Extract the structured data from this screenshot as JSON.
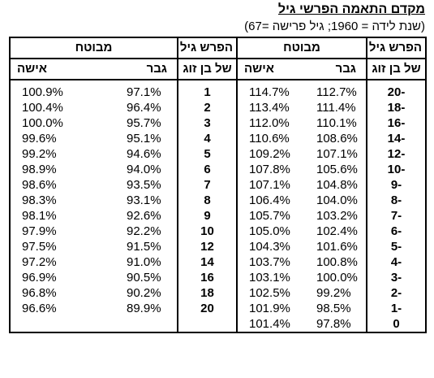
{
  "title": "מקדם התאמה הפרשי גיל",
  "subtitle": "(שנת לידה = 1960; גיל פרישה =67)",
  "headers": {
    "age_diff_line1": "הפרש גיל",
    "age_diff_line2": "של בן זוג",
    "mavutach": "מבוטח",
    "man": "גבר",
    "woman": "אישה"
  },
  "right_block": [
    {
      "age": "-20",
      "man": "112.7%",
      "woman": "114.7%"
    },
    {
      "age": "-18",
      "man": "111.4%",
      "woman": "113.4%"
    },
    {
      "age": "-16",
      "man": "110.1%",
      "woman": "112.0%"
    },
    {
      "age": "-14",
      "man": "108.6%",
      "woman": "110.6%"
    },
    {
      "age": "-12",
      "man": "107.1%",
      "woman": "109.2%"
    },
    {
      "age": "-10",
      "man": "105.6%",
      "woman": "107.8%"
    },
    {
      "age": "-9",
      "man": "104.8%",
      "woman": "107.1%"
    },
    {
      "age": "-8",
      "man": "104.0%",
      "woman": "106.4%"
    },
    {
      "age": "-7",
      "man": "103.2%",
      "woman": "105.7%"
    },
    {
      "age": "-6",
      "man": "102.4%",
      "woman": "105.0%"
    },
    {
      "age": "-5",
      "man": "101.6%",
      "woman": "104.3%"
    },
    {
      "age": "-4",
      "man": "100.8%",
      "woman": "103.7%"
    },
    {
      "age": "-3",
      "man": "100.0%",
      "woman": "103.1%"
    },
    {
      "age": "-2",
      "man": "99.2%",
      "woman": "102.5%"
    },
    {
      "age": "-1",
      "man": "98.5%",
      "woman": "101.9%"
    },
    {
      "age": "0",
      "man": "97.8%",
      "woman": "101.4%"
    }
  ],
  "left_block": [
    {
      "age": "1",
      "man": "97.1%",
      "woman": "100.9%"
    },
    {
      "age": "2",
      "man": "96.4%",
      "woman": "100.4%"
    },
    {
      "age": "3",
      "man": "95.7%",
      "woman": "100.0%"
    },
    {
      "age": "4",
      "man": "95.1%",
      "woman": "99.6%"
    },
    {
      "age": "5",
      "man": "94.6%",
      "woman": "99.2%"
    },
    {
      "age": "6",
      "man": "94.0%",
      "woman": "98.9%"
    },
    {
      "age": "7",
      "man": "93.5%",
      "woman": "98.6%"
    },
    {
      "age": "8",
      "man": "93.1%",
      "woman": "98.3%"
    },
    {
      "age": "9",
      "man": "92.6%",
      "woman": "98.1%"
    },
    {
      "age": "10",
      "man": "92.2%",
      "woman": "97.9%"
    },
    {
      "age": "12",
      "man": "91.5%",
      "woman": "97.5%"
    },
    {
      "age": "14",
      "man": "91.0%",
      "woman": "97.2%"
    },
    {
      "age": "16",
      "man": "90.5%",
      "woman": "96.9%"
    },
    {
      "age": "18",
      "man": "90.2%",
      "woman": "96.8%"
    },
    {
      "age": "20",
      "man": "89.9%",
      "woman": "96.6%"
    },
    {
      "age": "",
      "man": "",
      "woman": ""
    }
  ]
}
